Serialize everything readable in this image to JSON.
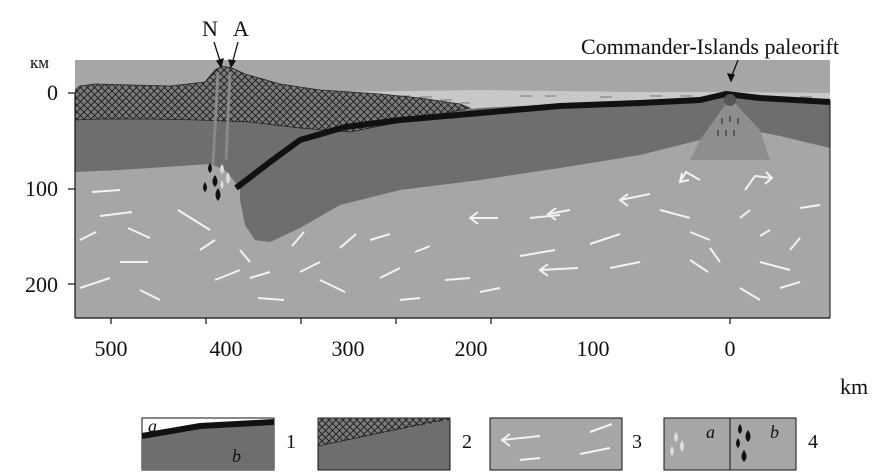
{
  "labels": {
    "y_unit": "км",
    "x_unit": "km",
    "volcano_left": "N",
    "volcano_right": "A",
    "rift": "Commander-Islands paleorift"
  },
  "y_ticks": [
    "0",
    "100",
    "200"
  ],
  "x_ticks": [
    "500",
    "400",
    "300",
    "200",
    "100",
    "0"
  ],
  "legend": [
    {
      "number": "1",
      "letter_a": "a",
      "letter_b": "b"
    },
    {
      "number": "2"
    },
    {
      "number": "3"
    },
    {
      "number": "4",
      "letter_a": "a",
      "letter_b": "b"
    }
  ],
  "colors": {
    "crust_sediment": "#c8c8c8",
    "lithosphere": "#6e6e6e",
    "asthenosphere": "#a6a6a6",
    "slab_top": "#111111",
    "flow_arrows": "#f2f2f2",
    "melt_light": "#dcdcdc",
    "melt_dark": "#111111"
  }
}
